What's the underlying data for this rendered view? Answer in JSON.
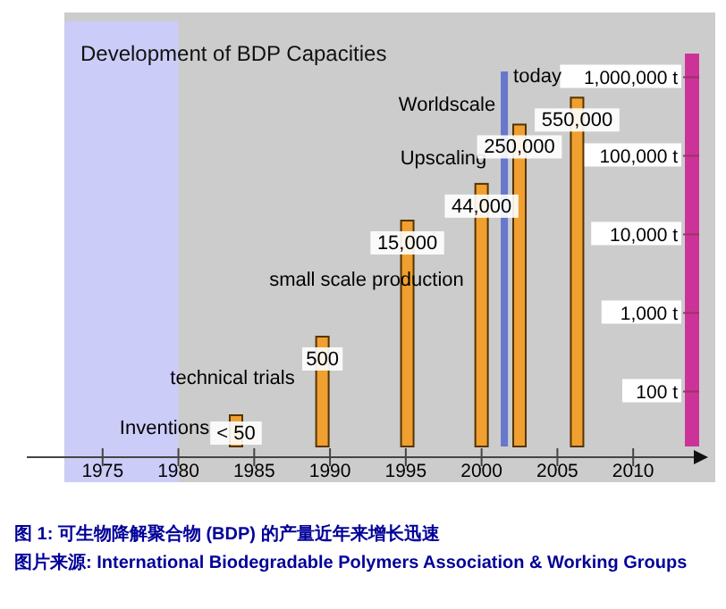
{
  "chart_data": {
    "type": "bar",
    "title": "Development of BDP Capacities",
    "subtitle": "图 1: 可生物降解聚合物 (BDP) 的产量近年来增长迅速",
    "x": [
      1983.8,
      1989.5,
      1995.1,
      2000,
      2002.5,
      2006.3
    ],
    "values": [
      50,
      500,
      15000,
      44000,
      250000,
      550000
    ],
    "value_labels": [
      "< 50",
      "500",
      "15,000",
      "44,000",
      "250,000",
      "550,000"
    ],
    "color": "#f0a030",
    "log": true,
    "xlim": [
      1970,
      2014
    ],
    "xticks": [
      1975,
      1980,
      1985,
      1990,
      1995,
      2000,
      2005,
      2010
    ],
    "ylim": [
      20,
      2000000
    ],
    "yticks": [
      {
        "value": 100,
        "label": "100 t"
      },
      {
        "value": 1000,
        "label": "1,000 t"
      },
      {
        "value": 10000,
        "label": "10,000 t"
      },
      {
        "value": 100000,
        "label": "100,000 t"
      },
      {
        "value": 1000000,
        "label": "1,000,000 t"
      }
    ],
    "ref_lines": [
      {
        "axis": "x",
        "value": 2001.5,
        "label": "today",
        "color": "#6677cc"
      }
    ],
    "bands": [
      {
        "axis": "x",
        "from": 1972.5,
        "to": 1980,
        "color": "#ccccf8"
      }
    ],
    "annotations": [
      "Inventions",
      "technical trials",
      "small scale production",
      "Upscaling",
      "Worldscale",
      "图片来源: International Biodegradable Polymers Association & Working Groups"
    ]
  }
}
